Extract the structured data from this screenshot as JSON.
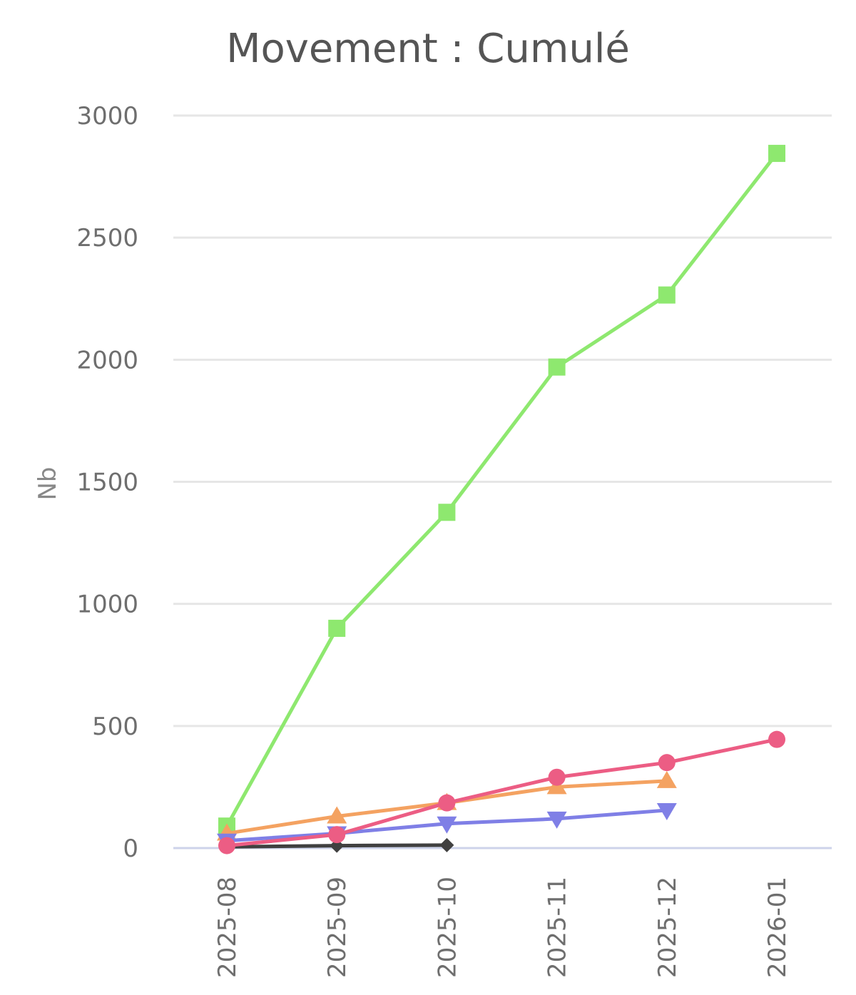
{
  "chart_data": {
    "type": "line",
    "title": "Movement : Cumulé",
    "xlabel": "",
    "ylabel": "Nb",
    "ylim": [
      0,
      3000
    ],
    "yticks": [
      0,
      500,
      1000,
      1500,
      2000,
      2500,
      3000
    ],
    "categories": [
      "2025-08",
      "2025-09",
      "2025-10",
      "2025-11",
      "2025-12",
      "2026-01"
    ],
    "grid": true,
    "legend": "none",
    "series": [
      {
        "color": "#8ee86f",
        "marker": "square",
        "values": [
          90,
          900,
          1375,
          1970,
          2265,
          2845
        ]
      },
      {
        "color": "#f4a261",
        "marker": "triangle-up",
        "values": [
          60,
          130,
          185,
          250,
          275,
          null
        ]
      },
      {
        "color": "#7f7fe6",
        "marker": "triangle-down",
        "values": [
          30,
          60,
          100,
          120,
          155,
          null
        ]
      },
      {
        "color": "#404040",
        "marker": "diamond",
        "values": [
          5,
          10,
          12,
          null,
          null,
          null
        ]
      },
      {
        "color": "#ec5d84",
        "marker": "circle",
        "values": [
          10,
          55,
          185,
          290,
          350,
          445
        ]
      }
    ]
  }
}
